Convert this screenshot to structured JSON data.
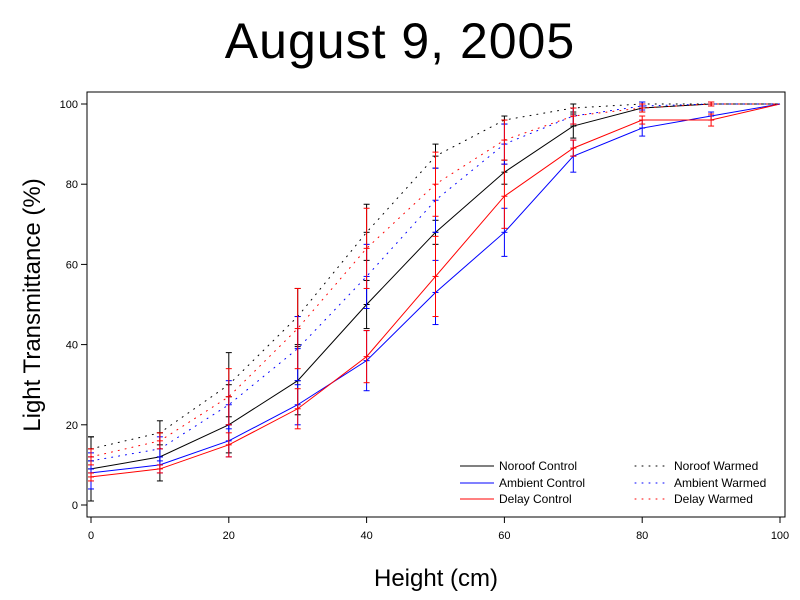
{
  "chart_data": {
    "type": "line",
    "title": "August 9, 2005",
    "xlabel": "Height (cm)",
    "ylabel": "Light Transmittance (%)",
    "xlim": [
      0,
      100
    ],
    "ylim": [
      0,
      100
    ],
    "xticks": [
      0,
      20,
      40,
      60,
      80,
      100
    ],
    "yticks": [
      0,
      20,
      40,
      60,
      80,
      100
    ],
    "x": [
      0,
      10,
      20,
      30,
      40,
      50,
      60,
      70,
      80,
      90,
      100
    ],
    "grid": false,
    "legend_position": "bottom-right",
    "series": [
      {
        "name": "Noroof Control",
        "color": "#000000",
        "style": "solid",
        "values": [
          9,
          12,
          20,
          31,
          50,
          68,
          83,
          94.5,
          99,
          100,
          100
        ],
        "errors": [
          8,
          6,
          7,
          8.5,
          6,
          3,
          3,
          3,
          1,
          0.5,
          0
        ]
      },
      {
        "name": "Ambient Control",
        "color": "#0000ff",
        "style": "solid",
        "values": [
          8,
          10,
          16,
          25,
          36,
          53,
          68,
          87,
          94,
          97,
          100
        ],
        "errors": [
          4,
          2,
          4,
          5,
          7.5,
          8,
          6,
          4,
          2,
          1,
          0
        ]
      },
      {
        "name": "Delay Control",
        "color": "#ff0000",
        "style": "solid",
        "values": [
          7,
          9,
          15,
          24,
          37,
          57,
          77,
          89,
          96,
          96,
          100
        ],
        "errors": [
          1,
          1,
          3,
          5,
          6.5,
          10,
          8,
          2,
          1,
          1.5,
          0
        ]
      },
      {
        "name": "Noroof Warmed",
        "color": "#000000",
        "style": "dotted",
        "values": [
          14,
          18,
          30,
          47,
          68,
          87,
          96,
          99,
          100,
          100,
          100
        ],
        "errors": [
          3,
          3,
          8,
          7,
          7,
          3,
          1,
          1,
          0.5,
          0.5,
          0
        ]
      },
      {
        "name": "Ambient Warmed",
        "color": "#0000ff",
        "style": "dotted",
        "values": [
          11,
          14,
          25,
          39,
          57,
          76,
          90,
          97,
          99.5,
          100,
          100
        ],
        "errors": [
          2,
          3,
          6,
          8,
          8,
          8,
          5,
          2,
          1,
          0.5,
          0
        ]
      },
      {
        "name": "Delay Warmed",
        "color": "#ff0000",
        "style": "dotted",
        "values": [
          12,
          16,
          27,
          44,
          64,
          80,
          91,
          97,
          99,
          100,
          100
        ],
        "errors": [
          2,
          2,
          7,
          10,
          10,
          8,
          5,
          2,
          1,
          0.5,
          0
        ]
      }
    ]
  }
}
